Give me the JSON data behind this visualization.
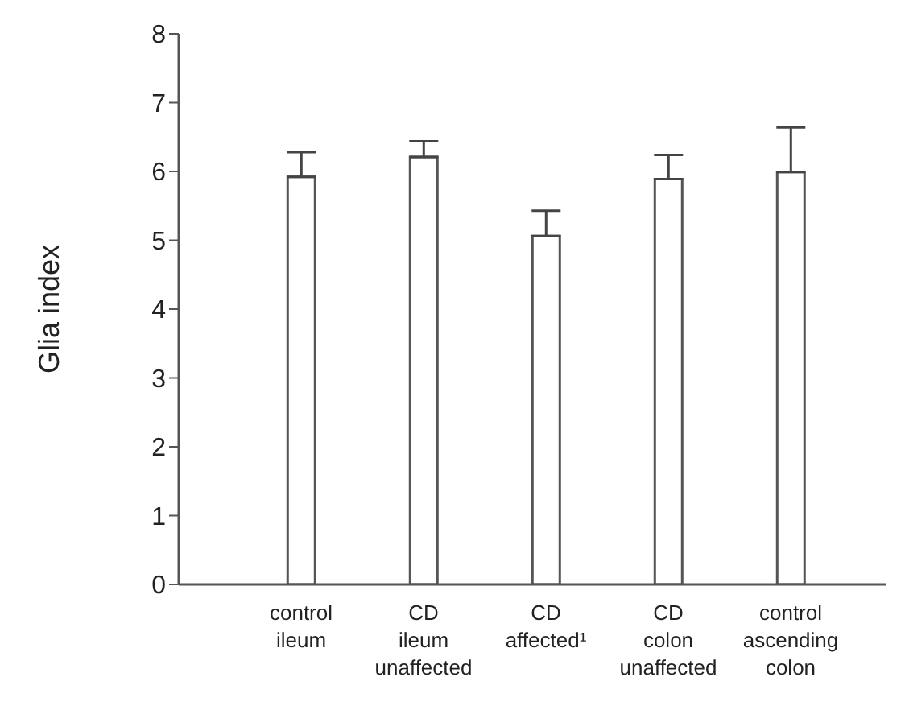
{
  "chart_data": {
    "type": "bar",
    "ylabel": "Glia index",
    "categories": [
      "control\nileum",
      "CD\nileum\nunaffected",
      "CD\naffected¹",
      "CD\ncolon\nunaffected",
      "control\nascending\ncolon"
    ],
    "values": [
      5.92,
      6.21,
      5.06,
      5.89,
      5.99
    ],
    "errors": [
      [
        5.92,
        6.28
      ],
      [
        6.21,
        6.44
      ],
      [
        5.06,
        5.43
      ],
      [
        5.89,
        6.24
      ],
      [
        5.99,
        6.64
      ]
    ],
    "color": "#ffffff",
    "ylim": [
      0,
      8
    ],
    "yticks": [
      0,
      1,
      2,
      3,
      4,
      5,
      6,
      7,
      8
    ],
    "grid": false
  }
}
